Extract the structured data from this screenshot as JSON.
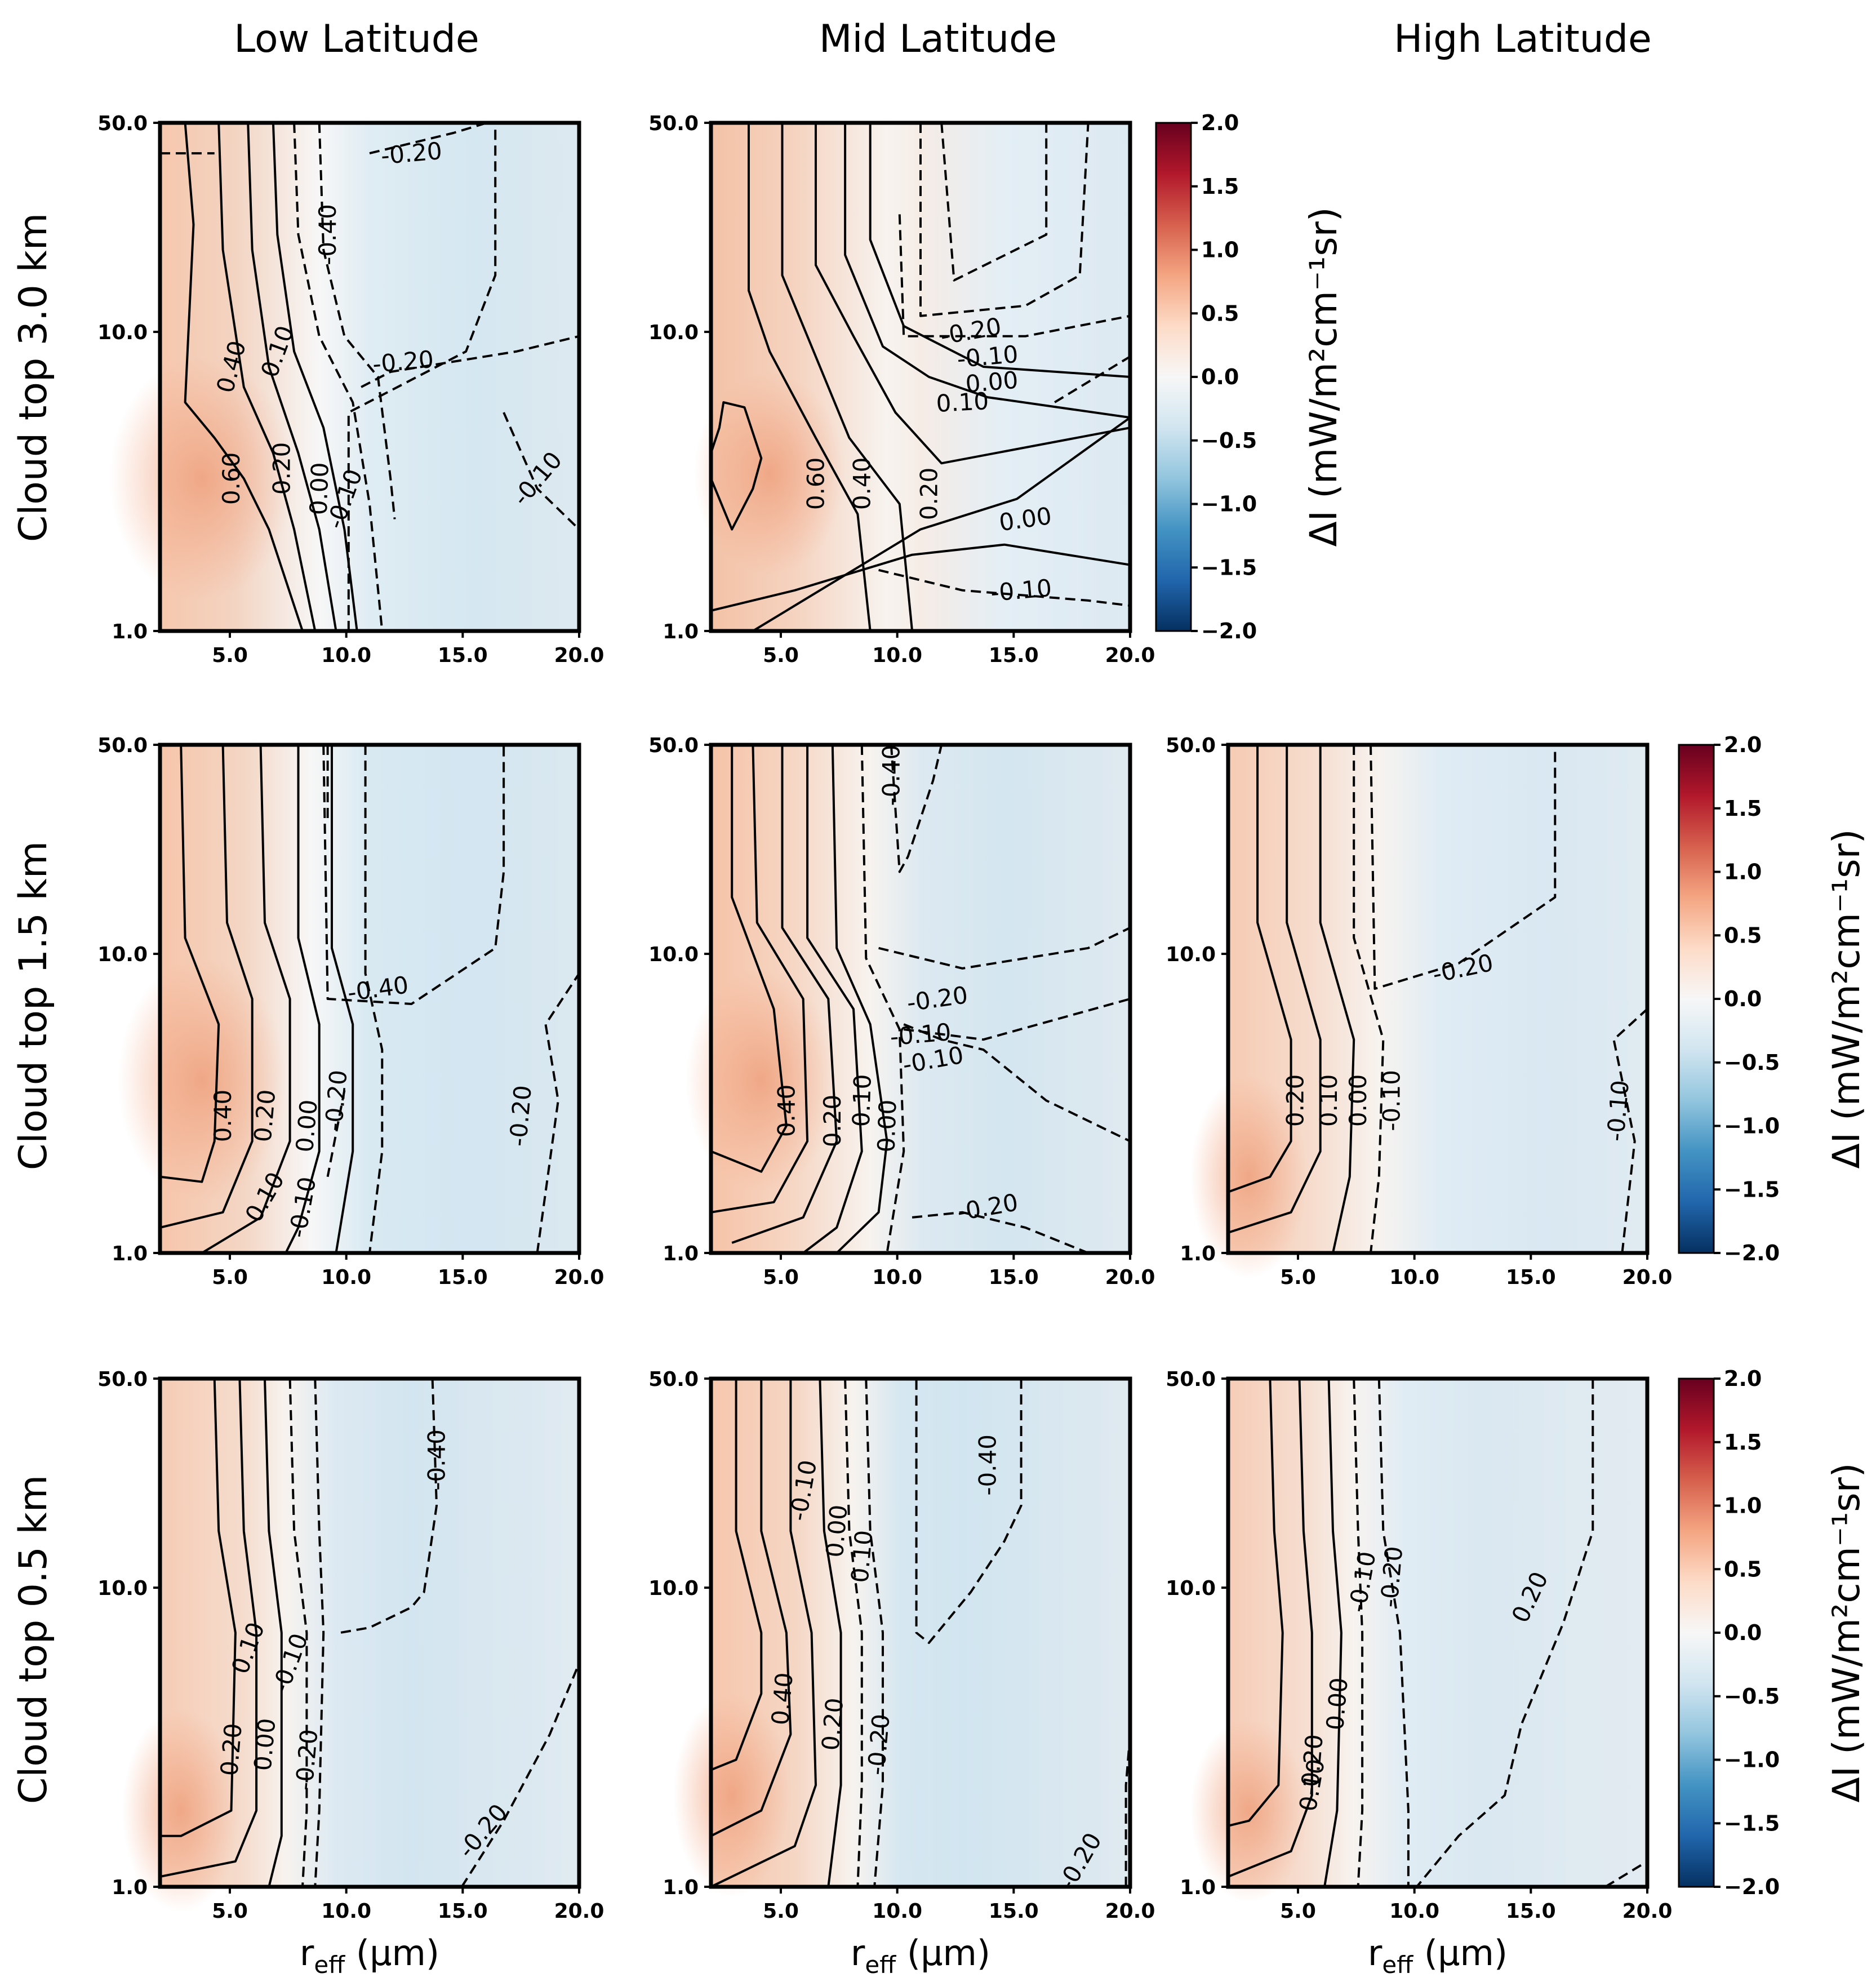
{
  "figure": {
    "column_titles": [
      "Low Latitude",
      "Mid Latitude",
      "High Latitude"
    ],
    "row_titles": [
      "Cloud top 3.0 km",
      "Cloud top 1.5 km",
      "Cloud top 0.5 km"
    ],
    "xlabel_main": "r",
    "xlabel_sub": "eff",
    "xlabel_unit": " (μm)",
    "colorbar_label": "ΔI (mW/m²cm⁻¹sr)",
    "colorbar_ticks": [
      "2.0",
      "1.5",
      "1.0",
      "0.5",
      "0.0",
      "−0.5",
      "−1.0",
      "−1.5",
      "−2.0"
    ],
    "colorbar_colors": [
      "#67001f",
      "#b2182b",
      "#d6604d",
      "#f4a582",
      "#fddbc7",
      "#f7f7f7",
      "#d1e5f0",
      "#92c5de",
      "#4393c3",
      "#2166ac",
      "#053061"
    ]
  },
  "chart_data": [
    {
      "panel": "Low Latitude, Cloud top 3.0 km",
      "type": "contour",
      "x_ticks": [
        "5.0",
        "10.0",
        "15.0",
        "20.0"
      ],
      "y_ticks": [
        "1.0",
        "10.0",
        "50.0"
      ],
      "xlim": [
        2,
        20
      ],
      "ylim": [
        1,
        50
      ],
      "yscale": "log",
      "contour_labels": [
        "-0.40",
        "0.40",
        "0.10",
        "-0.20",
        "0.60",
        "0.20",
        "0.00",
        "-0.10",
        "-0.10",
        "-0.20"
      ]
    },
    {
      "panel": "Mid Latitude, Cloud top 3.0 km",
      "type": "contour",
      "x_ticks": [
        "5.0",
        "10.0",
        "15.0",
        "20.0"
      ],
      "y_ticks": [
        "1.0",
        "10.0",
        "50.0"
      ],
      "xlim": [
        2,
        20
      ],
      "ylim": [
        1,
        50
      ],
      "yscale": "log",
      "contour_labels": [
        "-0.20",
        "-0.10",
        "0.00",
        "0.10",
        "0.60",
        "0.40",
        "0.20",
        "0.00",
        "-0.10"
      ]
    },
    {
      "panel": "Low Latitude, Cloud top 1.5 km",
      "type": "contour",
      "x_ticks": [
        "5.0",
        "10.0",
        "15.0",
        "20.0"
      ],
      "y_ticks": [
        "1.0",
        "10.0",
        "50.0"
      ],
      "xlim": [
        2,
        20
      ],
      "ylim": [
        1,
        50
      ],
      "yscale": "log",
      "contour_labels": [
        "-0.40",
        "0.40",
        "0.20",
        "0.00",
        "-0.20",
        "0.10",
        "-0.10",
        "-0.20"
      ]
    },
    {
      "panel": "Mid Latitude, Cloud top 1.5 km",
      "type": "contour",
      "x_ticks": [
        "5.0",
        "10.0",
        "15.0",
        "20.0"
      ],
      "y_ticks": [
        "1.0",
        "10.0",
        "50.0"
      ],
      "xlim": [
        2,
        20
      ],
      "ylim": [
        1,
        50
      ],
      "yscale": "log",
      "contour_labels": [
        "-0.40",
        "-0.20",
        "-0.10",
        "-0.10",
        "0.40",
        "0.20",
        "0.10",
        "0.00",
        "-0.20"
      ]
    },
    {
      "panel": "High Latitude, Cloud top 1.5 km",
      "type": "contour",
      "x_ticks": [
        "5.0",
        "10.0",
        "15.0",
        "20.0"
      ],
      "y_ticks": [
        "1.0",
        "10.0",
        "50.0"
      ],
      "xlim": [
        2,
        20
      ],
      "ylim": [
        1,
        50
      ],
      "yscale": "log",
      "contour_labels": [
        "-0.20",
        "0.20",
        "0.10",
        "0.00",
        "-0.10",
        "-0.10"
      ]
    },
    {
      "panel": "Low Latitude, Cloud top 0.5 km",
      "type": "contour",
      "x_ticks": [
        "5.0",
        "10.0",
        "15.0",
        "20.0"
      ],
      "y_ticks": [
        "1.0",
        "10.0",
        "50.0"
      ],
      "xlim": [
        2,
        20
      ],
      "ylim": [
        1,
        50
      ],
      "yscale": "log",
      "contour_labels": [
        "-0.40",
        "0.10",
        "-0.10",
        "0.20",
        "0.00",
        "-0.20",
        "-0.20"
      ]
    },
    {
      "panel": "Mid Latitude, Cloud top 0.5 km",
      "type": "contour",
      "x_ticks": [
        "5.0",
        "10.0",
        "15.0",
        "20.0"
      ],
      "y_ticks": [
        "1.0",
        "10.0",
        "50.0"
      ],
      "xlim": [
        2,
        20
      ],
      "ylim": [
        1,
        50
      ],
      "yscale": "log",
      "contour_labels": [
        "-0.10",
        "0.00",
        "0.10",
        "-0.40",
        "0.40",
        "0.20",
        "-0.20",
        "-0.20"
      ]
    },
    {
      "panel": "High Latitude, Cloud top 0.5 km",
      "type": "contour",
      "x_ticks": [
        "5.0",
        "10.0",
        "15.0",
        "20.0"
      ],
      "y_ticks": [
        "1.0",
        "10.0",
        "50.0"
      ],
      "xlim": [
        2,
        20
      ],
      "ylim": [
        1,
        50
      ],
      "yscale": "log",
      "contour_labels": [
        "-0.10",
        "-0.20",
        "0.20",
        "0.00",
        "0.10",
        "-0.20"
      ]
    }
  ]
}
